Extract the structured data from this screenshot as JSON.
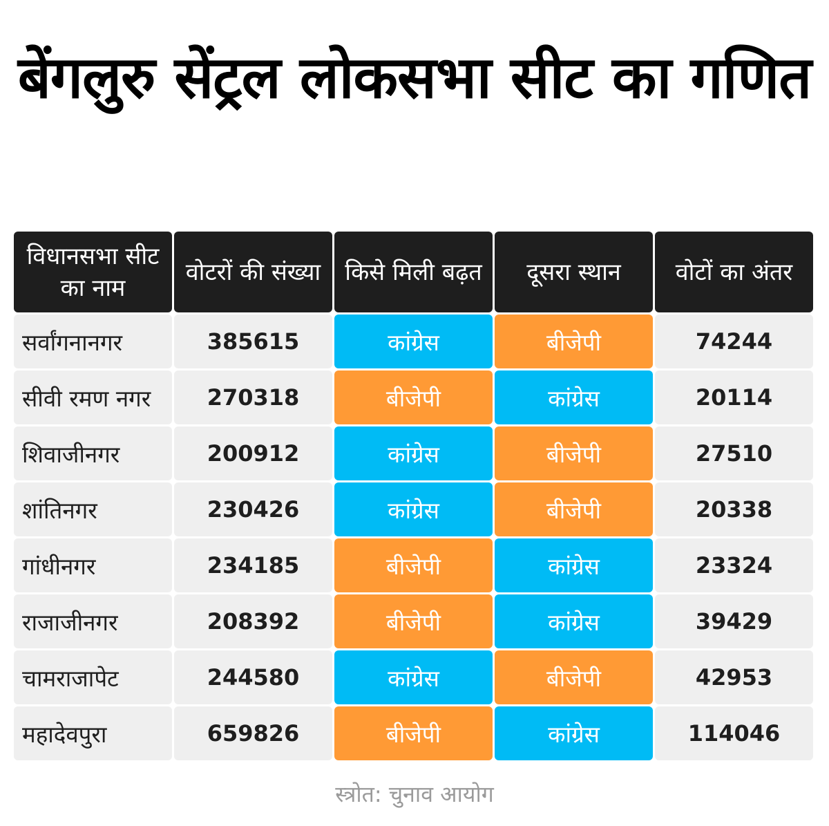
{
  "title": "बेंगलुरु सेंट्रल लोकसभा सीट का गणित",
  "colors": {
    "header_bg": "#1e1e1e",
    "cell_bg": "#efefef",
    "congress": "#00bbf5",
    "bjp": "#ff9a35"
  },
  "headers": [
    "विधानसभा सीट का नाम",
    "वोटरों की संख्या",
    "किसे मिली बढ़त",
    "दूसरा स्थान",
    "वोटों का अंतर"
  ],
  "rows": [
    {
      "name": "सर्वांगनानगर",
      "voters": "385615",
      "lead": "कांग्रेस",
      "second": "बीजेपी",
      "margin": "74244"
    },
    {
      "name": "सीवी रमण नगर",
      "voters": "270318",
      "lead": "बीजेपी",
      "second": "कांग्रेस",
      "margin": "20114"
    },
    {
      "name": "शिवाजीनगर",
      "voters": "200912",
      "lead": "कांग्रेस",
      "second": "बीजेपी",
      "margin": "27510"
    },
    {
      "name": "शांतिनगर",
      "voters": "230426",
      "lead": "कांग्रेस",
      "second": "बीजेपी",
      "margin": "20338"
    },
    {
      "name": "गांधीनगर",
      "voters": "234185",
      "lead": "बीजेपी",
      "second": "कांग्रेस",
      "margin": "23324"
    },
    {
      "name": "राजाजीनगर",
      "voters": "208392",
      "lead": "बीजेपी",
      "second": "कांग्रेस",
      "margin": "39429"
    },
    {
      "name": "चामराजापेट",
      "voters": "244580",
      "lead": "कांग्रेस",
      "second": "बीजेपी",
      "margin": "42953"
    },
    {
      "name": "महादेवपुरा",
      "voters": "659826",
      "lead": "बीजेपी",
      "second": "कांग्रेस",
      "margin": "114046"
    }
  ],
  "source": "स्त्रोत: चुनाव आयोग"
}
